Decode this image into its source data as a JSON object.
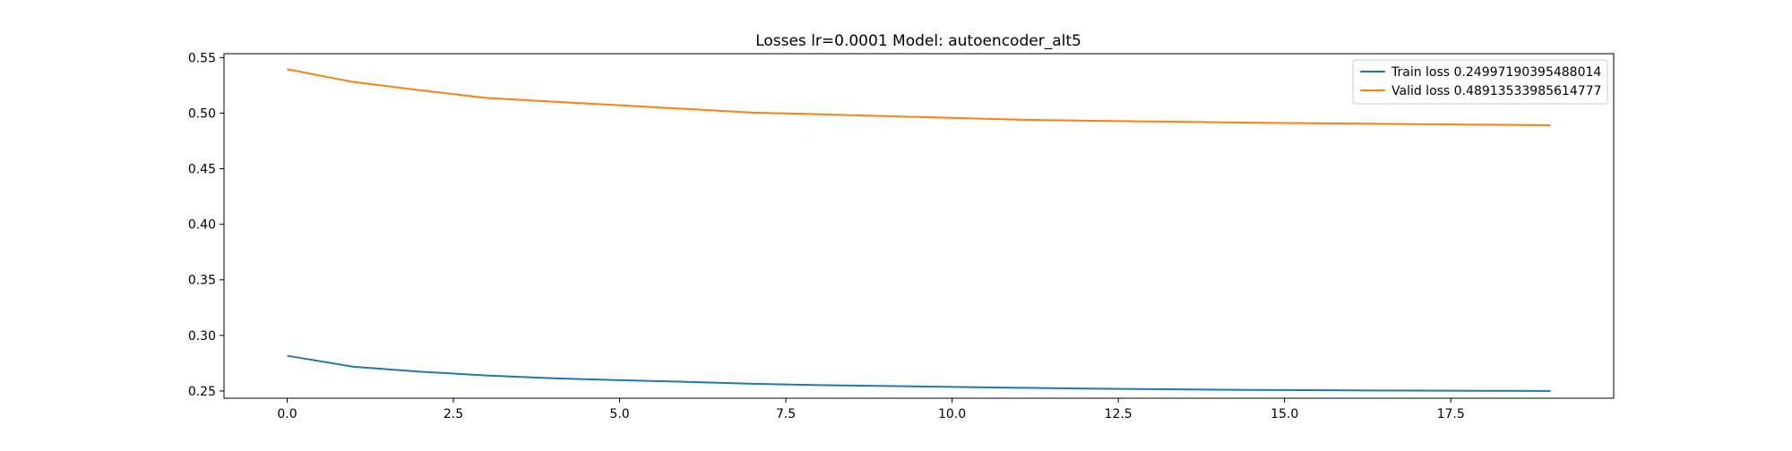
{
  "chart_data": {
    "type": "line",
    "title": "Losses lr=0.0001 Model: autoencoder_alt5",
    "xlabel": "",
    "ylabel": "",
    "xlim": [
      -0.95,
      19.95
    ],
    "ylim": [
      0.2435,
      0.5535
    ],
    "xticks": [
      0.0,
      2.5,
      5.0,
      7.5,
      10.0,
      12.5,
      15.0,
      17.5
    ],
    "xtick_labels": [
      "0.0",
      "2.5",
      "5.0",
      "7.5",
      "10.0",
      "12.5",
      "15.0",
      "17.5"
    ],
    "yticks": [
      0.25,
      0.3,
      0.35,
      0.4,
      0.45,
      0.5,
      0.55
    ],
    "ytick_labels": [
      "0.25",
      "0.30",
      "0.35",
      "0.40",
      "0.45",
      "0.50",
      "0.55"
    ],
    "grid": false,
    "legend_position": "top-right",
    "x": [
      0,
      1,
      2,
      3,
      4,
      5,
      6,
      7,
      8,
      9,
      10,
      11,
      12,
      13,
      14,
      15,
      16,
      17,
      18,
      19
    ],
    "series": [
      {
        "name": "Train loss 0.24997190395488014",
        "color": "#1f77b4",
        "values": [
          0.2817,
          0.2718,
          0.2674,
          0.2639,
          0.2614,
          0.2597,
          0.2582,
          0.2565,
          0.2553,
          0.2545,
          0.2537,
          0.2529,
          0.2522,
          0.2517,
          0.2512,
          0.2508,
          0.2505,
          0.2503,
          0.2501,
          0.25
        ]
      },
      {
        "name": "Valid loss 0.48913533985614777",
        "color": "#ff7f0e",
        "values": [
          0.5395,
          0.528,
          0.5206,
          0.5136,
          0.5103,
          0.5071,
          0.5038,
          0.5005,
          0.4989,
          0.4973,
          0.4957,
          0.4941,
          0.4932,
          0.4925,
          0.4918,
          0.4911,
          0.4906,
          0.4901,
          0.4896,
          0.4891
        ]
      }
    ]
  }
}
